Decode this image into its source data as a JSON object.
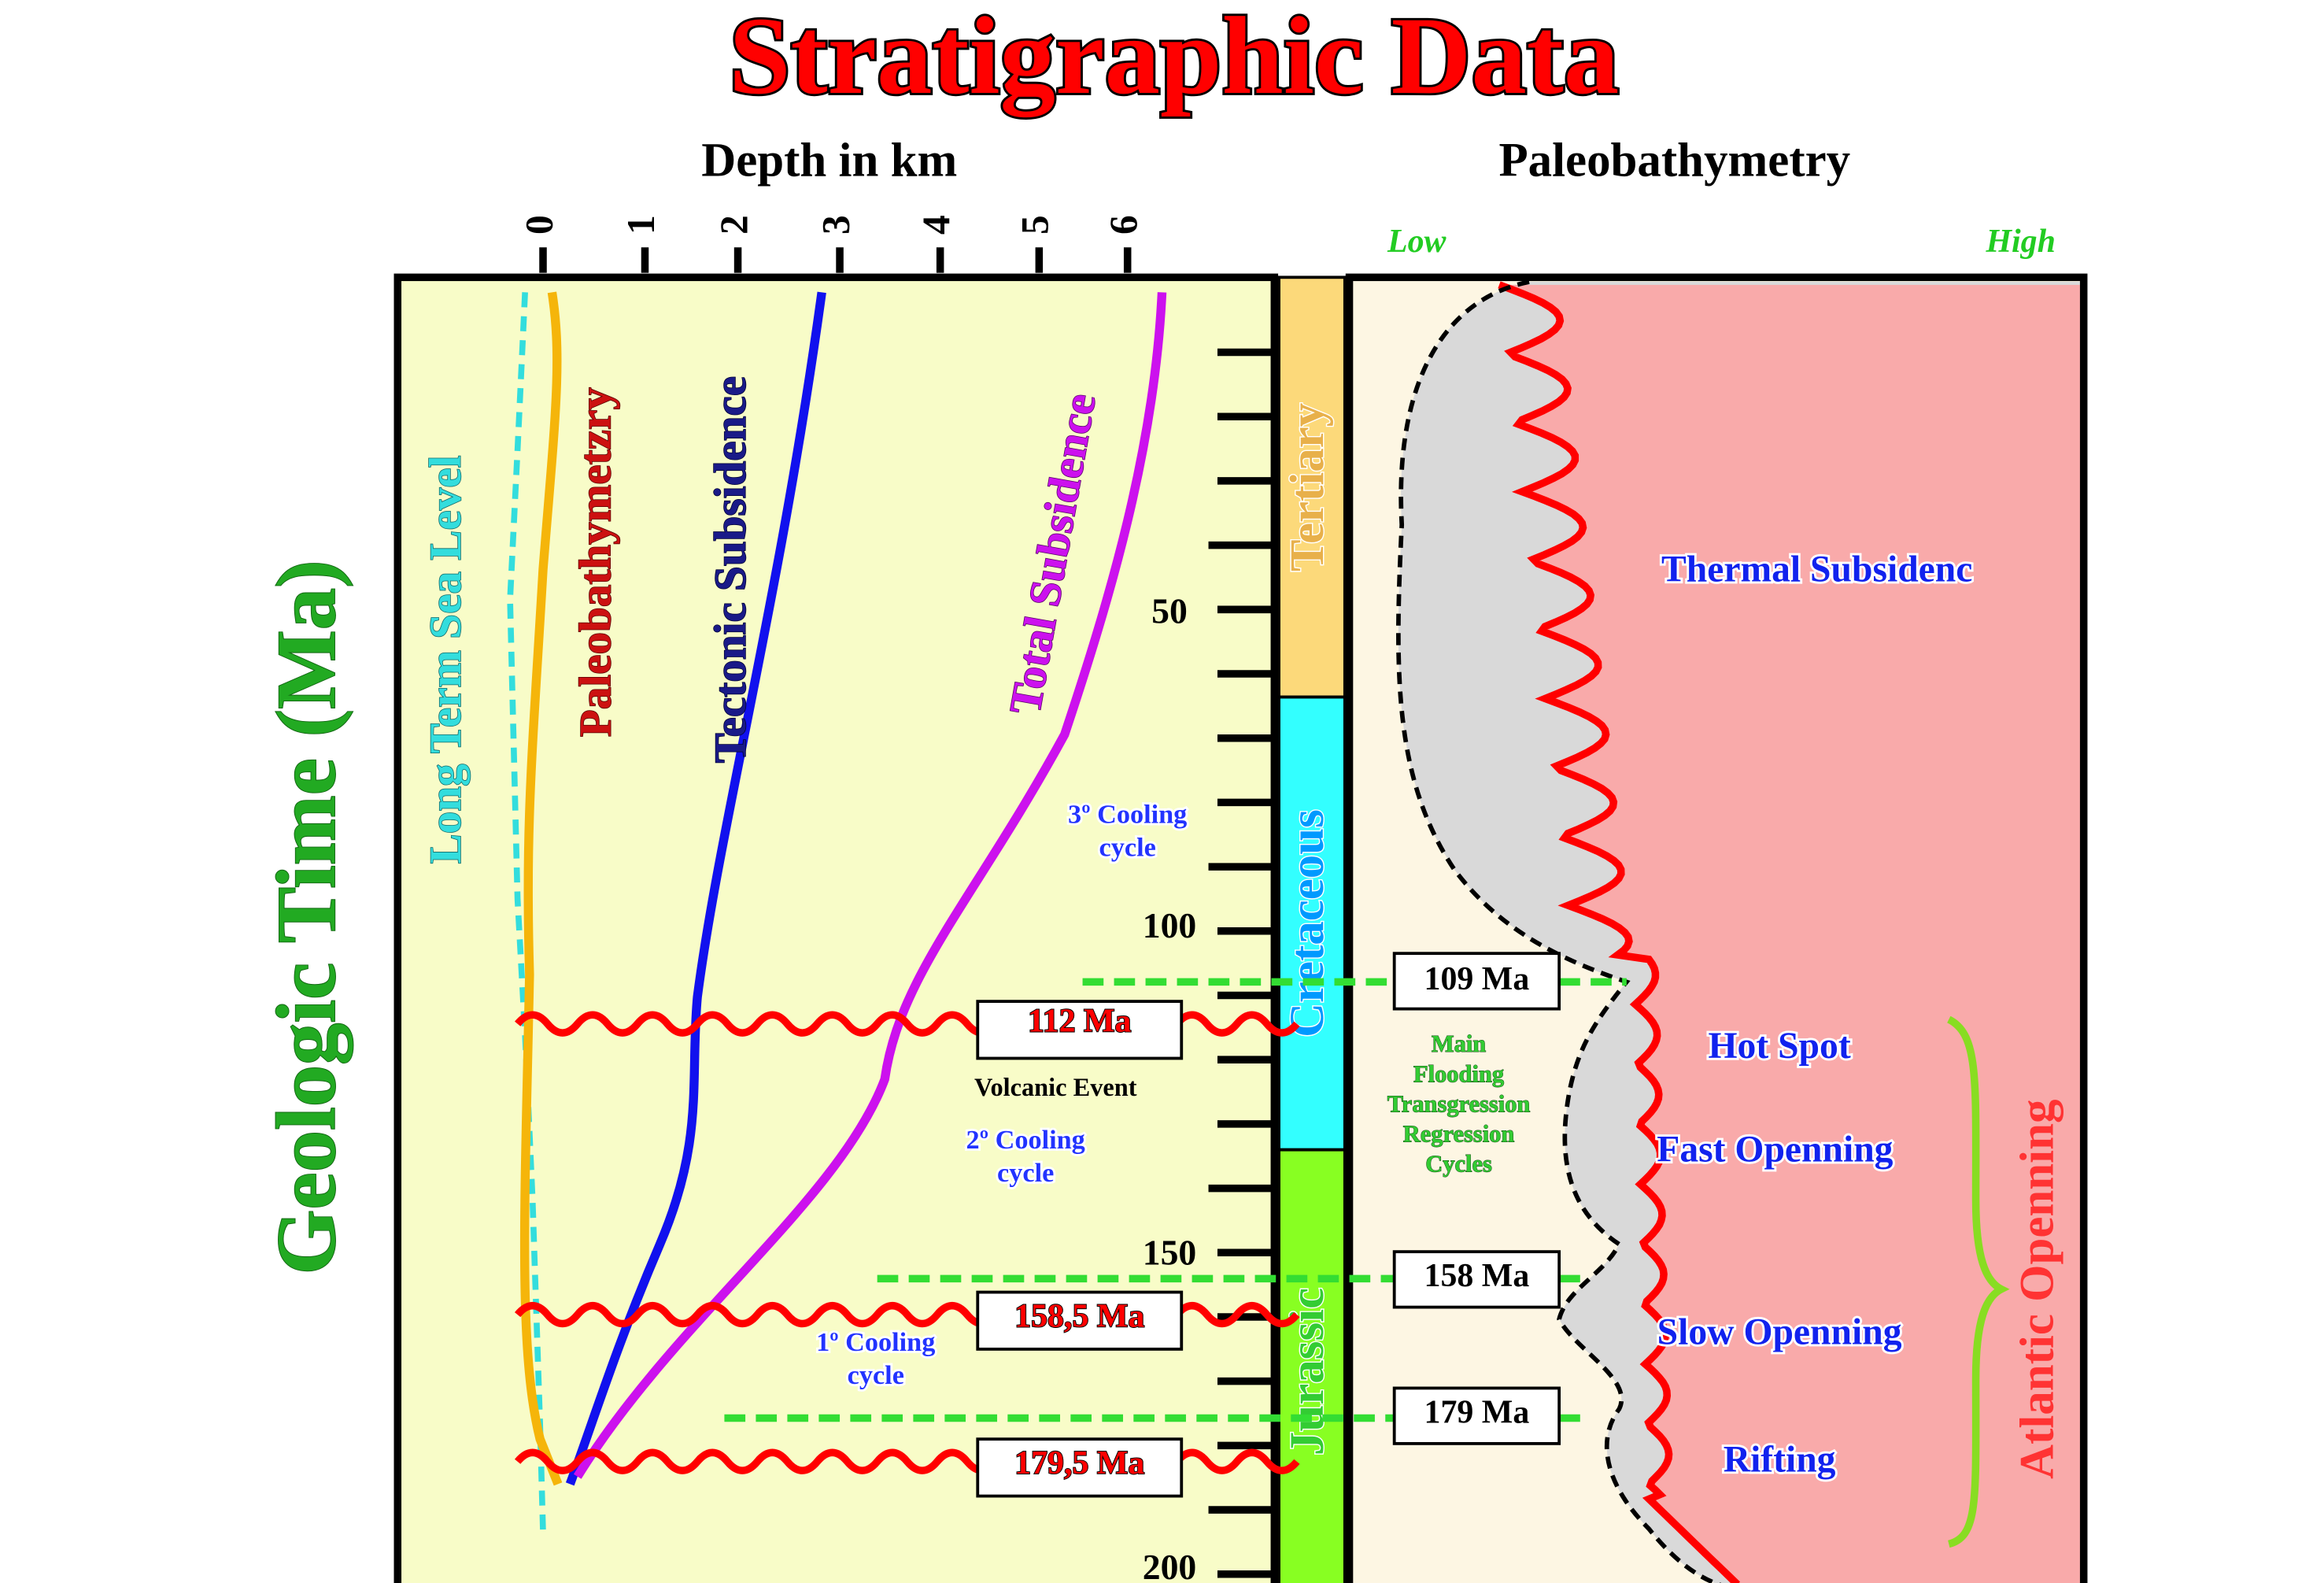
{
  "header": {
    "title": "Stratigraphic Data",
    "depth_label": "Depth in km",
    "paleo_label": "Paleobathymetry"
  },
  "depth_ticks": [
    "0",
    "1",
    "2",
    "3",
    "4",
    "5",
    "6"
  ],
  "time_axis": {
    "label": "Geologic Time (Ma)",
    "ticks": [
      "50",
      "100",
      "150",
      "200"
    ]
  },
  "periods": [
    "Tertiary",
    "Cretaceous",
    "Jurassic"
  ],
  "curve_labels": [
    "Long Term Sea Level",
    "Paleobathymetzry",
    "Tectonic Subsidence",
    "Total Subsidence"
  ],
  "events": [
    "112 Ma",
    "158,5 Ma",
    "179,5 Ma"
  ],
  "volcanic": "Volcanic Event",
  "cooling": [
    [
      "3º Cooling",
      "cycle"
    ],
    [
      "2º Cooling",
      "cycle"
    ],
    [
      "1º Cooling",
      "cycle"
    ]
  ],
  "paleo_scale": {
    "low": "Low",
    "high": "High"
  },
  "ages": [
    "109 Ma",
    "158 Ma",
    "179 Ma"
  ],
  "flooding": [
    "Main",
    "Flooding",
    "Transgression",
    "Regression",
    "Cycles"
  ],
  "zones": [
    "Thermal Subsidenc",
    "Hot Spot",
    "Fast Openning",
    "Slow Openning",
    "Rifting"
  ],
  "atlantic": "Atlantic Openning"
}
